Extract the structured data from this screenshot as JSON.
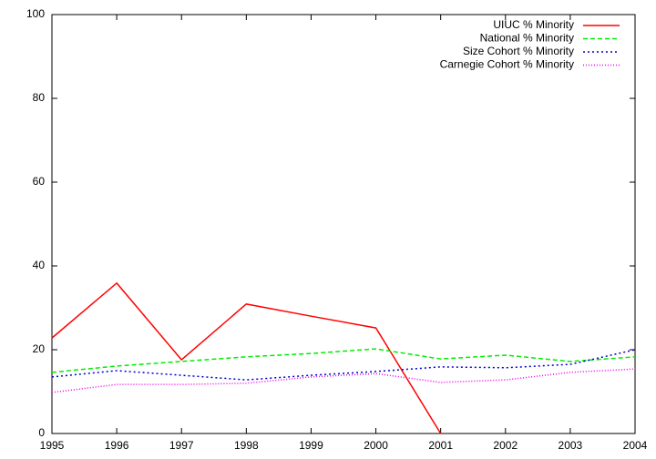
{
  "chart_data": {
    "type": "line",
    "x": [
      1995,
      1996,
      1997,
      1998,
      1999,
      2000,
      2001,
      2002,
      2003,
      2004
    ],
    "xlim": [
      1995,
      2004
    ],
    "xticks": [
      1995,
      1996,
      1997,
      1998,
      1999,
      2000,
      2001,
      2002,
      2003,
      2004
    ],
    "ylim": [
      0,
      100
    ],
    "yticks": [
      0,
      20,
      40,
      60,
      80,
      100
    ],
    "grid": false,
    "legend": "top-right",
    "series": [
      {
        "name": "UIUC % Minority",
        "color": "#ff0000",
        "dash": "none",
        "values": [
          22.8,
          35.9,
          17.6,
          30.9,
          28,
          25.2,
          0,
          null,
          null,
          null
        ]
      },
      {
        "name": "National % Minority",
        "color": "#00ee00",
        "dash": "5,3",
        "values": [
          14.6,
          16.1,
          17.2,
          18.3,
          19.1,
          20.2,
          17.8,
          18.7,
          17.2,
          18.3
        ]
      },
      {
        "name": "Size Cohort % Minority",
        "color": "#0000cc",
        "dash": "2,3",
        "values": [
          13.5,
          15,
          13.9,
          12.8,
          13.9,
          14.8,
          15.9,
          15.7,
          16.5,
          20
        ]
      },
      {
        "name": "Carnegie Cohort % Minority",
        "color": "#ee00ee",
        "dash": "1,2",
        "values": [
          9.8,
          11.7,
          11.7,
          12,
          13.5,
          14.3,
          12.2,
          12.8,
          14.6,
          15.4
        ]
      }
    ]
  }
}
